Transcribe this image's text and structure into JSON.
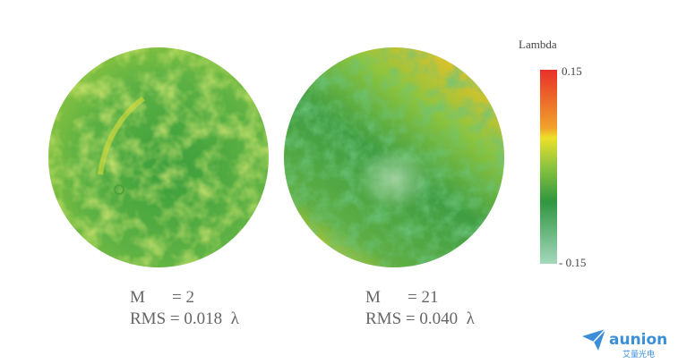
{
  "colorbar": {
    "title": "Lambda",
    "max_label": "0.15",
    "min_label": "- 0.15"
  },
  "panels": [
    {
      "m_label": "M",
      "m_value": "= 2",
      "rms": "RMS = 0.018  λ"
    },
    {
      "m_label": "M",
      "m_value": "= 21",
      "rms": "RMS = 0.040  λ"
    }
  ],
  "logo": {
    "name": "aunion",
    "subtitle": "艾量光电"
  }
}
